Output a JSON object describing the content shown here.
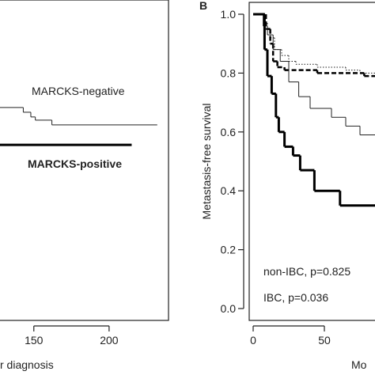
{
  "chart_data": [
    {
      "type": "line",
      "step": true,
      "x_label": "r diagnosis",
      "annotations": [
        "MARCKS-negative",
        "MARCKS-positive"
      ],
      "xlim": [
        127,
        240
      ],
      "xticks": [
        150,
        200
      ],
      "ylim": [
        0,
        1
      ],
      "series": [
        {
          "name": "MARCKS-negative",
          "color": "#222222",
          "line_width": 1,
          "line_style": "solid",
          "x": [
            127,
            143,
            148,
            151,
            162,
            232
          ],
          "values": [
            0.683,
            0.667,
            0.651,
            0.64,
            0.624,
            0.624
          ]
        },
        {
          "name": "MARCKS-positive",
          "color": "#000000",
          "line_width": 3,
          "line_style": "solid",
          "x": [
            127,
            215
          ],
          "values": [
            0.556,
            0.556
          ]
        }
      ]
    },
    {
      "type": "line",
      "step": true,
      "panel_label": "B",
      "x_label": "Mo",
      "y_label": "Metastasis-free survival",
      "annotations": [
        "non-IBC, p=0.825",
        "IBC, p=0.036"
      ],
      "xlim": [
        0,
        86
      ],
      "xticks": [
        0,
        50
      ],
      "ylim": [
        0,
        1
      ],
      "yticks": [
        {
          "value": 0,
          "label": "0.0"
        },
        0.2,
        0.4,
        0.6,
        0.8,
        {
          "value": 1,
          "label": "1.0"
        }
      ],
      "series": [
        {
          "color": "#222222",
          "line_width": 1,
          "line_style": "dotted",
          "x": [
            0,
            8,
            10,
            12,
            15,
            20,
            25,
            30,
            45,
            65,
            75,
            86
          ],
          "values": [
            1,
            0.97,
            0.95,
            0.92,
            0.88,
            0.86,
            0.84,
            0.83,
            0.82,
            0.81,
            0.8,
            0.8
          ]
        },
        {
          "color": "#000000",
          "line_width": 2.5,
          "line_style": "dashed",
          "x": [
            0,
            9,
            12,
            14,
            17,
            22,
            45,
            78,
            86
          ],
          "values": [
            1,
            0.95,
            0.9,
            0.84,
            0.82,
            0.81,
            0.8,
            0.79,
            0.79
          ]
        },
        {
          "color": "#222222",
          "line_width": 1,
          "line_style": "solid",
          "x": [
            0,
            7,
            10,
            14,
            19,
            25,
            32,
            40,
            55,
            65,
            75,
            86
          ],
          "values": [
            1,
            0.96,
            0.93,
            0.88,
            0.84,
            0.77,
            0.72,
            0.68,
            0.65,
            0.62,
            0.59,
            0.59
          ]
        },
        {
          "color": "#000000",
          "line_width": 3,
          "line_style": "solid",
          "x": [
            0,
            8,
            10,
            13,
            16,
            18,
            22,
            28,
            33,
            43,
            61,
            86
          ],
          "values": [
            1,
            0.88,
            0.79,
            0.73,
            0.65,
            0.6,
            0.55,
            0.52,
            0.47,
            0.4,
            0.35,
            0.35
          ]
        }
      ]
    }
  ]
}
